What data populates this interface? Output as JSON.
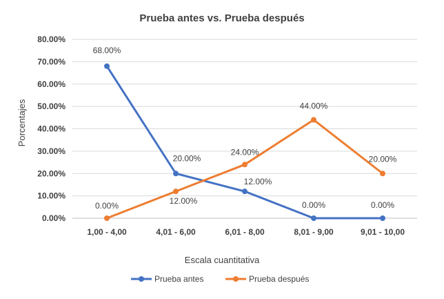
{
  "chart_data": {
    "type": "line",
    "title": "Prueba antes vs. Prueba después",
    "xlabel": "Escala cuantitativa",
    "ylabel": "Porcentajes",
    "categories": [
      "1,00 - 4,00",
      "4,01 - 6,00",
      "6,01 - 8,00",
      "8,01 - 9,00",
      "9,01 - 10,00"
    ],
    "ylim": [
      0,
      80
    ],
    "yticks": [
      "0.00%",
      "10.00%",
      "20.00%",
      "30.00%",
      "40.00%",
      "50.00%",
      "60.00%",
      "70.00%",
      "80.00%"
    ],
    "grid": true,
    "legend_position": "bottom",
    "series": [
      {
        "name": "Prueba antes",
        "color": "#4472C4",
        "values": [
          68,
          20,
          12,
          0,
          0
        ],
        "labels": [
          "68.00%",
          "20.00%",
          "12.00%",
          "0.00%",
          "0.00%"
        ]
      },
      {
        "name": "Prueba después",
        "color": "#ED7D31",
        "values": [
          0,
          12,
          24,
          44,
          20
        ],
        "labels": [
          "0.00%",
          "12.00%",
          "24.00%",
          "44.00%",
          "20.00%"
        ]
      }
    ]
  }
}
